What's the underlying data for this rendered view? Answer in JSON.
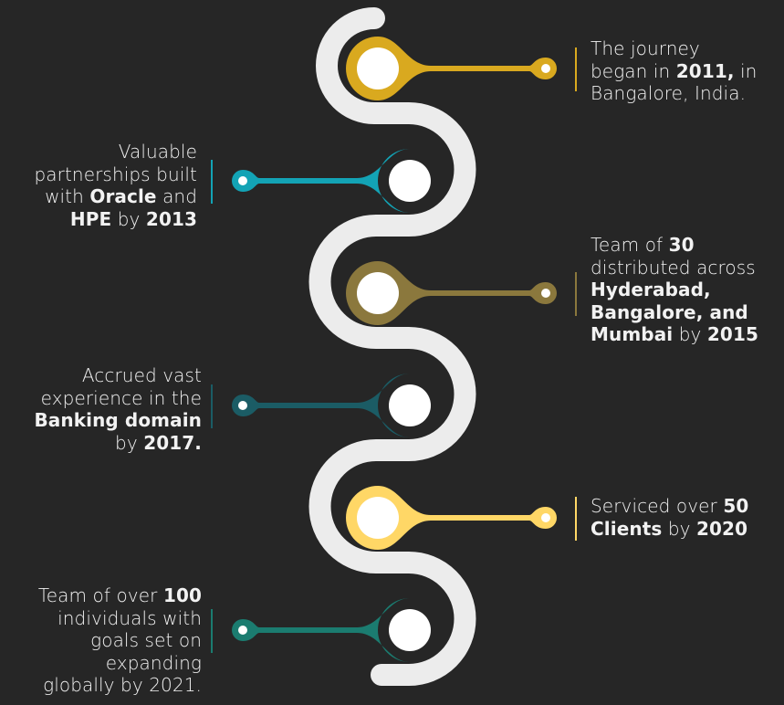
{
  "colors": {
    "background": "#262626",
    "path": "#ececec",
    "text": "#f2f2f2"
  },
  "milestones": [
    {
      "side": "right",
      "color": "#d9a91f",
      "segments": [
        {
          "t": "The journey",
          "b": false
        },
        {
          "t": "\n",
          "b": false
        },
        {
          "t": "began in ",
          "b": false
        },
        {
          "t": "2011,",
          "b": true
        },
        {
          "t": " in",
          "b": false
        },
        {
          "t": "\n",
          "b": false
        },
        {
          "t": "Bangalore, India.",
          "b": false
        }
      ]
    },
    {
      "side": "left",
      "color": "#13a3b5",
      "segments": [
        {
          "t": "Valuable",
          "b": false
        },
        {
          "t": "\n",
          "b": false
        },
        {
          "t": "partnerships built",
          "b": false
        },
        {
          "t": "\n",
          "b": false
        },
        {
          "t": "with ",
          "b": false
        },
        {
          "t": "Oracle",
          "b": true
        },
        {
          "t": " and",
          "b": false
        },
        {
          "t": "\n",
          "b": false
        },
        {
          "t": "HPE",
          "b": true
        },
        {
          "t": " by ",
          "b": false
        },
        {
          "t": "2013",
          "b": true
        }
      ]
    },
    {
      "side": "right",
      "color": "#8b783d",
      "segments": [
        {
          "t": "Team of ",
          "b": false
        },
        {
          "t": "30",
          "b": true
        },
        {
          "t": "\n",
          "b": false
        },
        {
          "t": "distributed across",
          "b": false
        },
        {
          "t": "\n",
          "b": false
        },
        {
          "t": "Hyderabad,",
          "b": true
        },
        {
          "t": "\n",
          "b": false
        },
        {
          "t": "Bangalore, and",
          "b": true
        },
        {
          "t": "\n",
          "b": false
        },
        {
          "t": "Mumbai",
          "b": true
        },
        {
          "t": " by ",
          "b": false
        },
        {
          "t": "2015",
          "b": true
        }
      ]
    },
    {
      "side": "left",
      "color": "#1b5c65",
      "segments": [
        {
          "t": "Accrued vast",
          "b": false
        },
        {
          "t": "\n",
          "b": false
        },
        {
          "t": "experience in the",
          "b": false
        },
        {
          "t": "\n",
          "b": false
        },
        {
          "t": "Banking domain",
          "b": true
        },
        {
          "t": "\n",
          "b": false
        },
        {
          "t": "by ",
          "b": false
        },
        {
          "t": "2017.",
          "b": true
        }
      ]
    },
    {
      "side": "right",
      "color": "#ffd766",
      "segments": [
        {
          "t": "Serviced over ",
          "b": false
        },
        {
          "t": "50",
          "b": true
        },
        {
          "t": "\n",
          "b": false
        },
        {
          "t": "Clients",
          "b": true
        },
        {
          "t": " by ",
          "b": false
        },
        {
          "t": "2020",
          "b": true
        }
      ]
    },
    {
      "side": "left",
      "color": "#1b7c70",
      "segments": [
        {
          "t": "Team of over ",
          "b": false
        },
        {
          "t": "100",
          "b": true
        },
        {
          "t": "\n",
          "b": false
        },
        {
          "t": "individuals with",
          "b": false
        },
        {
          "t": "\n",
          "b": false
        },
        {
          "t": "goals set on",
          "b": false
        },
        {
          "t": "\n",
          "b": false
        },
        {
          "t": "expanding",
          "b": false
        },
        {
          "t": "\n",
          "b": false
        },
        {
          "t": "globally by 2021.",
          "b": false
        }
      ]
    }
  ]
}
